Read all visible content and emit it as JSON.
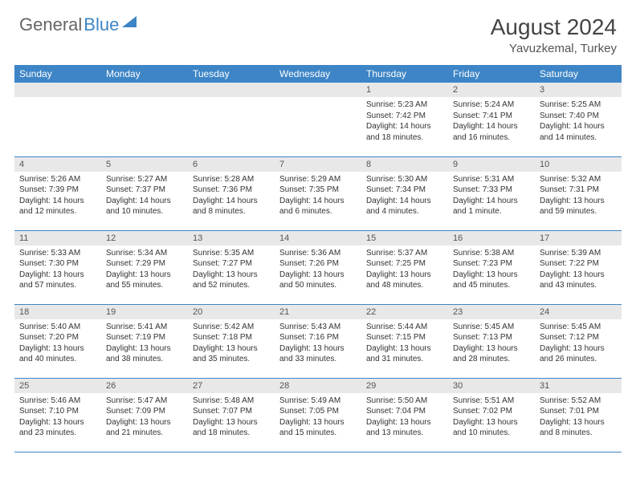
{
  "logo": {
    "text1": "General",
    "text2": "Blue"
  },
  "title": "August 2024",
  "location": "Yavuzkemal, Turkey",
  "colors": {
    "header_bg": "#3d85c6",
    "header_text": "#ffffff",
    "daynum_bg": "#e8e8e8",
    "border": "#3d85c6"
  },
  "weekdays": [
    "Sunday",
    "Monday",
    "Tuesday",
    "Wednesday",
    "Thursday",
    "Friday",
    "Saturday"
  ],
  "weeks": [
    [
      null,
      null,
      null,
      null,
      {
        "n": "1",
        "l1": "Sunrise: 5:23 AM",
        "l2": "Sunset: 7:42 PM",
        "l3": "Daylight: 14 hours",
        "l4": "and 18 minutes."
      },
      {
        "n": "2",
        "l1": "Sunrise: 5:24 AM",
        "l2": "Sunset: 7:41 PM",
        "l3": "Daylight: 14 hours",
        "l4": "and 16 minutes."
      },
      {
        "n": "3",
        "l1": "Sunrise: 5:25 AM",
        "l2": "Sunset: 7:40 PM",
        "l3": "Daylight: 14 hours",
        "l4": "and 14 minutes."
      }
    ],
    [
      {
        "n": "4",
        "l1": "Sunrise: 5:26 AM",
        "l2": "Sunset: 7:39 PM",
        "l3": "Daylight: 14 hours",
        "l4": "and 12 minutes."
      },
      {
        "n": "5",
        "l1": "Sunrise: 5:27 AM",
        "l2": "Sunset: 7:37 PM",
        "l3": "Daylight: 14 hours",
        "l4": "and 10 minutes."
      },
      {
        "n": "6",
        "l1": "Sunrise: 5:28 AM",
        "l2": "Sunset: 7:36 PM",
        "l3": "Daylight: 14 hours",
        "l4": "and 8 minutes."
      },
      {
        "n": "7",
        "l1": "Sunrise: 5:29 AM",
        "l2": "Sunset: 7:35 PM",
        "l3": "Daylight: 14 hours",
        "l4": "and 6 minutes."
      },
      {
        "n": "8",
        "l1": "Sunrise: 5:30 AM",
        "l2": "Sunset: 7:34 PM",
        "l3": "Daylight: 14 hours",
        "l4": "and 4 minutes."
      },
      {
        "n": "9",
        "l1": "Sunrise: 5:31 AM",
        "l2": "Sunset: 7:33 PM",
        "l3": "Daylight: 14 hours",
        "l4": "and 1 minute."
      },
      {
        "n": "10",
        "l1": "Sunrise: 5:32 AM",
        "l2": "Sunset: 7:31 PM",
        "l3": "Daylight: 13 hours",
        "l4": "and 59 minutes."
      }
    ],
    [
      {
        "n": "11",
        "l1": "Sunrise: 5:33 AM",
        "l2": "Sunset: 7:30 PM",
        "l3": "Daylight: 13 hours",
        "l4": "and 57 minutes."
      },
      {
        "n": "12",
        "l1": "Sunrise: 5:34 AM",
        "l2": "Sunset: 7:29 PM",
        "l3": "Daylight: 13 hours",
        "l4": "and 55 minutes."
      },
      {
        "n": "13",
        "l1": "Sunrise: 5:35 AM",
        "l2": "Sunset: 7:27 PM",
        "l3": "Daylight: 13 hours",
        "l4": "and 52 minutes."
      },
      {
        "n": "14",
        "l1": "Sunrise: 5:36 AM",
        "l2": "Sunset: 7:26 PM",
        "l3": "Daylight: 13 hours",
        "l4": "and 50 minutes."
      },
      {
        "n": "15",
        "l1": "Sunrise: 5:37 AM",
        "l2": "Sunset: 7:25 PM",
        "l3": "Daylight: 13 hours",
        "l4": "and 48 minutes."
      },
      {
        "n": "16",
        "l1": "Sunrise: 5:38 AM",
        "l2": "Sunset: 7:23 PM",
        "l3": "Daylight: 13 hours",
        "l4": "and 45 minutes."
      },
      {
        "n": "17",
        "l1": "Sunrise: 5:39 AM",
        "l2": "Sunset: 7:22 PM",
        "l3": "Daylight: 13 hours",
        "l4": "and 43 minutes."
      }
    ],
    [
      {
        "n": "18",
        "l1": "Sunrise: 5:40 AM",
        "l2": "Sunset: 7:20 PM",
        "l3": "Daylight: 13 hours",
        "l4": "and 40 minutes."
      },
      {
        "n": "19",
        "l1": "Sunrise: 5:41 AM",
        "l2": "Sunset: 7:19 PM",
        "l3": "Daylight: 13 hours",
        "l4": "and 38 minutes."
      },
      {
        "n": "20",
        "l1": "Sunrise: 5:42 AM",
        "l2": "Sunset: 7:18 PM",
        "l3": "Daylight: 13 hours",
        "l4": "and 35 minutes."
      },
      {
        "n": "21",
        "l1": "Sunrise: 5:43 AM",
        "l2": "Sunset: 7:16 PM",
        "l3": "Daylight: 13 hours",
        "l4": "and 33 minutes."
      },
      {
        "n": "22",
        "l1": "Sunrise: 5:44 AM",
        "l2": "Sunset: 7:15 PM",
        "l3": "Daylight: 13 hours",
        "l4": "and 31 minutes."
      },
      {
        "n": "23",
        "l1": "Sunrise: 5:45 AM",
        "l2": "Sunset: 7:13 PM",
        "l3": "Daylight: 13 hours",
        "l4": "and 28 minutes."
      },
      {
        "n": "24",
        "l1": "Sunrise: 5:45 AM",
        "l2": "Sunset: 7:12 PM",
        "l3": "Daylight: 13 hours",
        "l4": "and 26 minutes."
      }
    ],
    [
      {
        "n": "25",
        "l1": "Sunrise: 5:46 AM",
        "l2": "Sunset: 7:10 PM",
        "l3": "Daylight: 13 hours",
        "l4": "and 23 minutes."
      },
      {
        "n": "26",
        "l1": "Sunrise: 5:47 AM",
        "l2": "Sunset: 7:09 PM",
        "l3": "Daylight: 13 hours",
        "l4": "and 21 minutes."
      },
      {
        "n": "27",
        "l1": "Sunrise: 5:48 AM",
        "l2": "Sunset: 7:07 PM",
        "l3": "Daylight: 13 hours",
        "l4": "and 18 minutes."
      },
      {
        "n": "28",
        "l1": "Sunrise: 5:49 AM",
        "l2": "Sunset: 7:05 PM",
        "l3": "Daylight: 13 hours",
        "l4": "and 15 minutes."
      },
      {
        "n": "29",
        "l1": "Sunrise: 5:50 AM",
        "l2": "Sunset: 7:04 PM",
        "l3": "Daylight: 13 hours",
        "l4": "and 13 minutes."
      },
      {
        "n": "30",
        "l1": "Sunrise: 5:51 AM",
        "l2": "Sunset: 7:02 PM",
        "l3": "Daylight: 13 hours",
        "l4": "and 10 minutes."
      },
      {
        "n": "31",
        "l1": "Sunrise: 5:52 AM",
        "l2": "Sunset: 7:01 PM",
        "l3": "Daylight: 13 hours",
        "l4": "and 8 minutes."
      }
    ]
  ]
}
